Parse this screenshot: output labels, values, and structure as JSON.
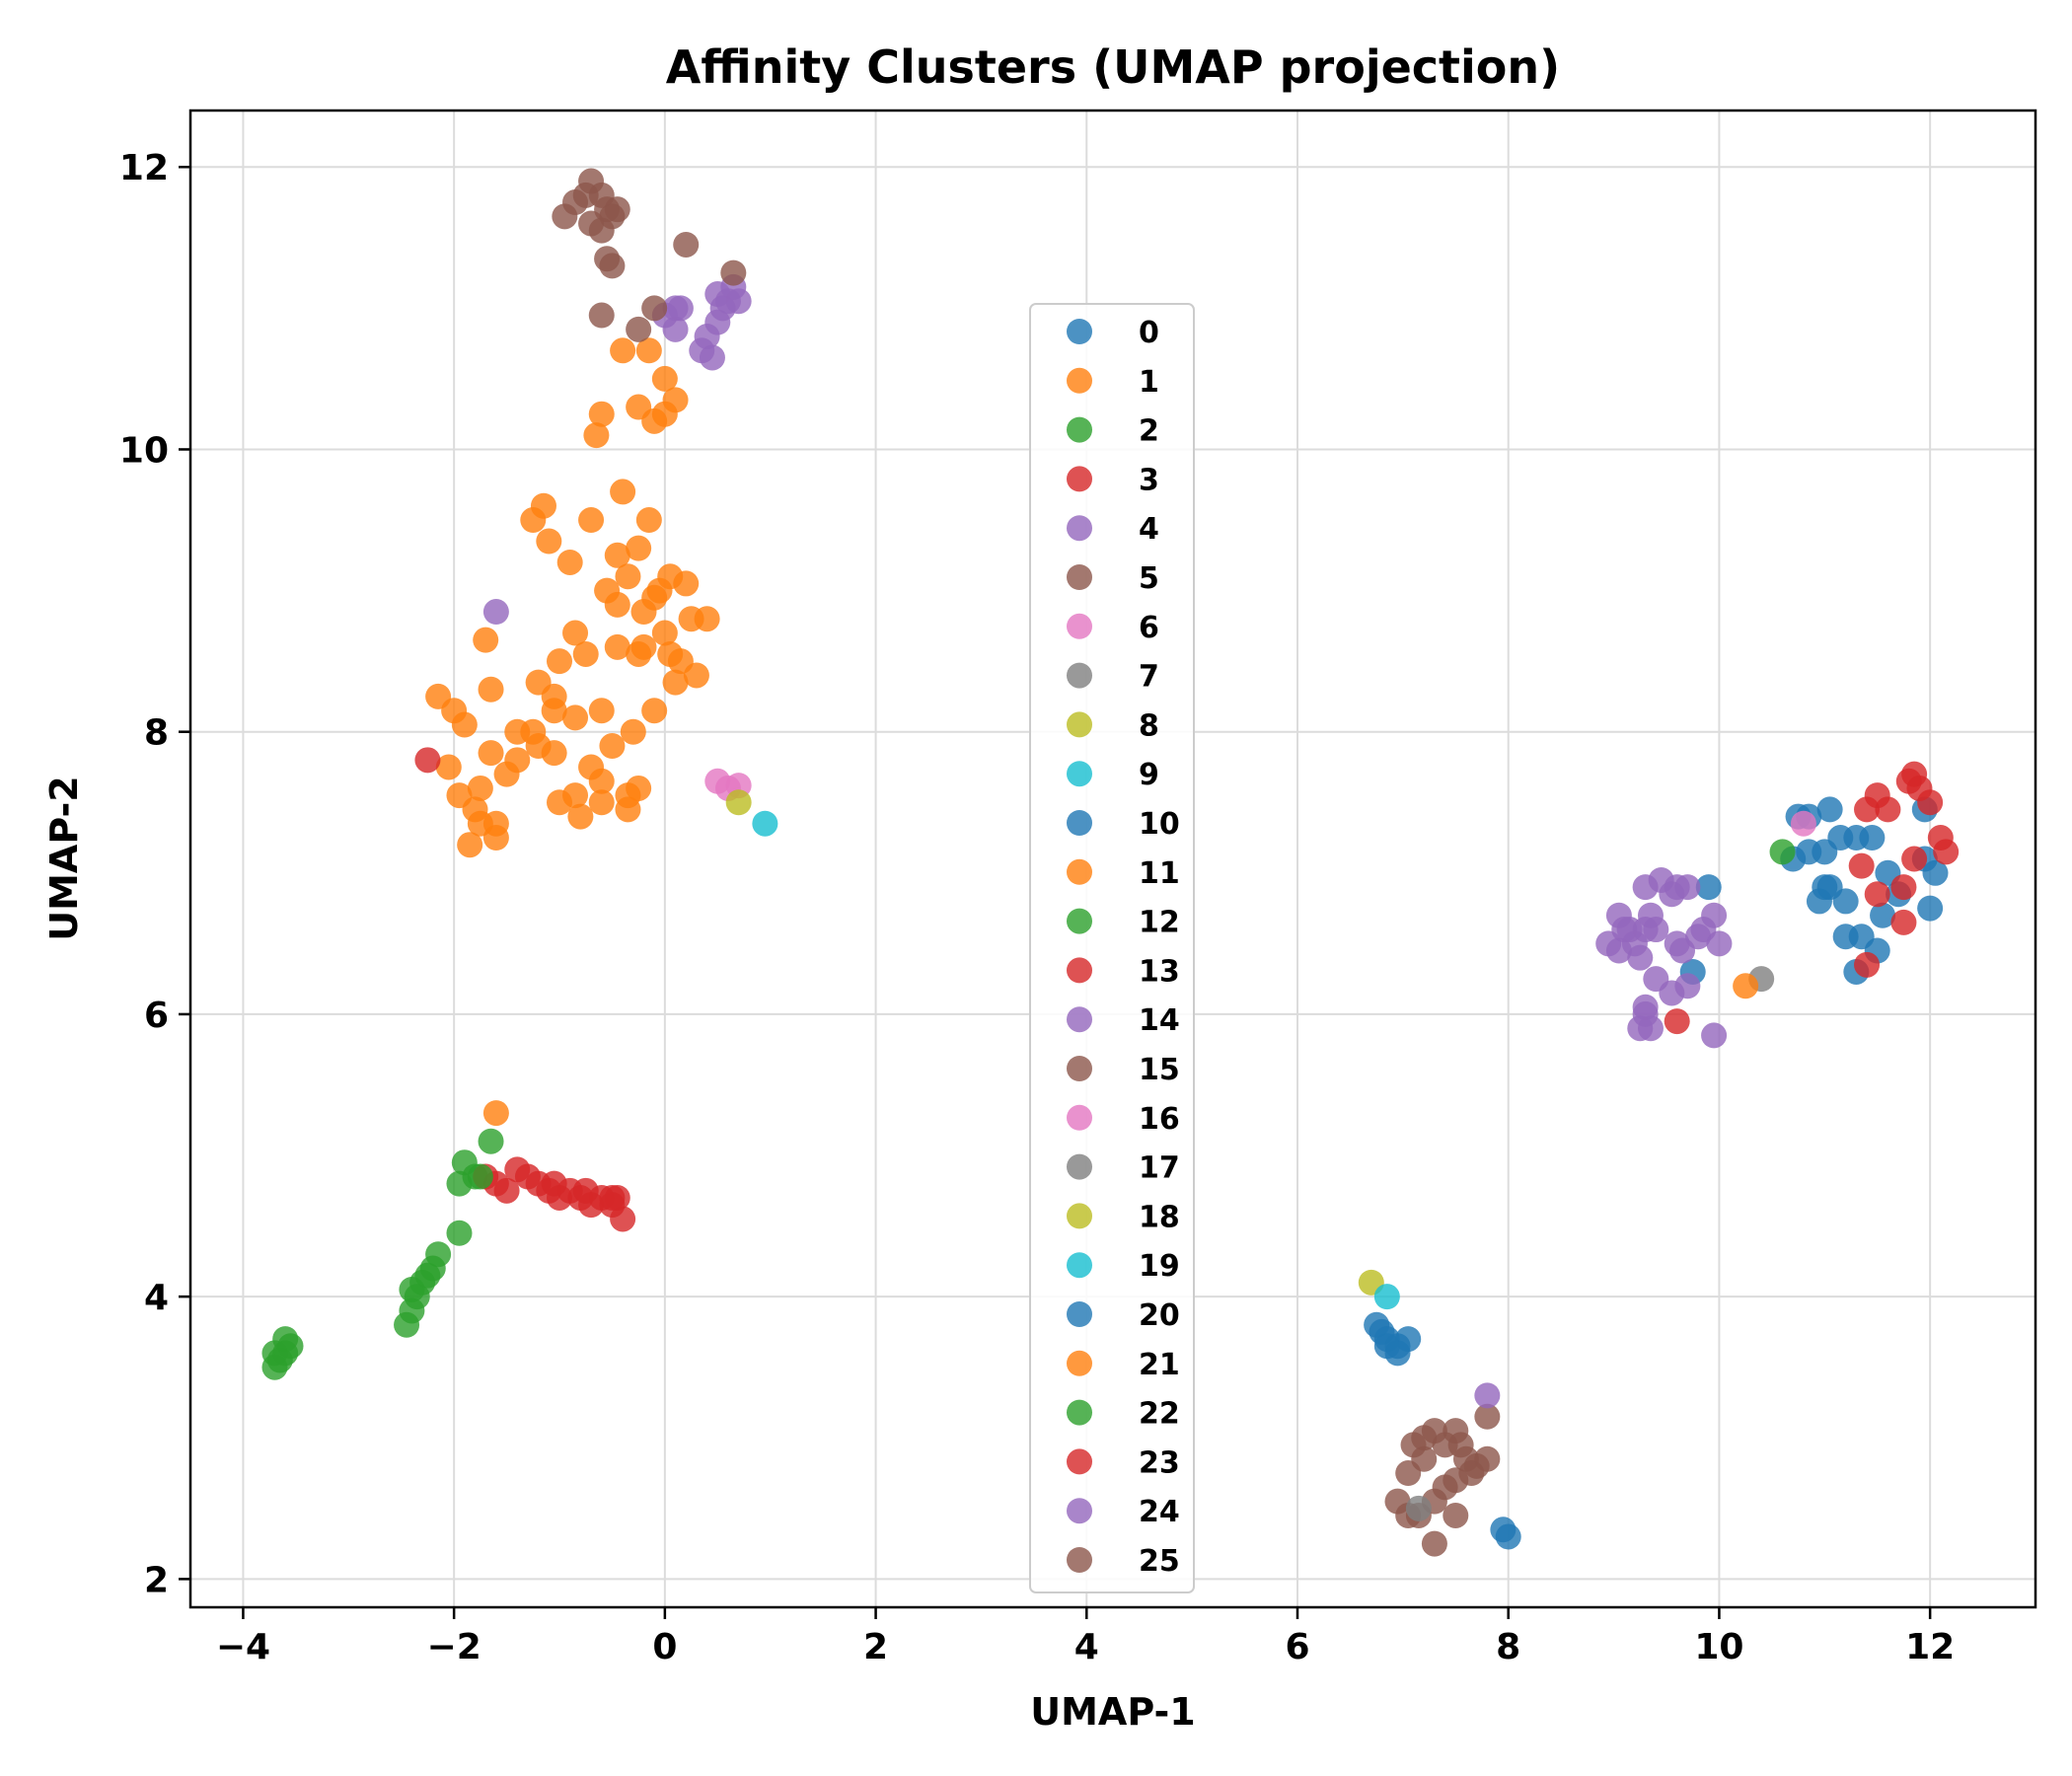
{
  "chart_data": {
    "type": "scatter",
    "title": "Affinity Clusters (UMAP projection)",
    "xlabel": "UMAP-1",
    "ylabel": "UMAP-2",
    "xlim": [
      -4.5,
      13
    ],
    "ylim": [
      1.8,
      12.4
    ],
    "xticks": [
      -4,
      -2,
      0,
      2,
      4,
      6,
      8,
      10,
      12
    ],
    "xtick_labels": [
      "−4",
      "−2",
      "0",
      "2",
      "4",
      "6",
      "8",
      "10",
      "12"
    ],
    "yticks": [
      2,
      4,
      6,
      8,
      10,
      12
    ],
    "ytick_labels": [
      "2",
      "4",
      "6",
      "8",
      "10",
      "12"
    ],
    "grid": true,
    "legend_position": "center",
    "series": [
      {
        "name": "0",
        "color": "#1f77b4",
        "points": [
          [
            9.75,
            6.3
          ],
          [
            9.9,
            6.9
          ]
        ]
      },
      {
        "name": "1",
        "color": "#ff7f0e",
        "points": [
          [
            -1.6,
            7.25
          ],
          [
            -1.8,
            7.45
          ],
          [
            -1.65,
            7.85
          ],
          [
            -1.4,
            7.8
          ],
          [
            -1.2,
            7.9
          ],
          [
            -1.05,
            8.15
          ],
          [
            -1.2,
            8.35
          ],
          [
            -1.0,
            7.5
          ],
          [
            -0.8,
            7.4
          ],
          [
            -0.6,
            7.65
          ],
          [
            -0.35,
            7.45
          ],
          [
            -0.25,
            7.6
          ],
          [
            -0.5,
            7.9
          ],
          [
            -0.3,
            8.0
          ],
          [
            -0.1,
            8.15
          ],
          [
            0.1,
            8.35
          ],
          [
            0.3,
            8.4
          ],
          [
            0.05,
            8.55
          ],
          [
            -0.2,
            8.6
          ],
          [
            0.0,
            8.7
          ],
          [
            0.25,
            8.8
          ],
          [
            0.4,
            8.8
          ],
          [
            0.2,
            9.05
          ],
          [
            -0.05,
            9.0
          ],
          [
            -0.2,
            8.85
          ],
          [
            -0.45,
            8.9
          ],
          [
            -0.55,
            9.0
          ],
          [
            -0.35,
            9.1
          ],
          [
            -0.25,
            9.3
          ],
          [
            -0.45,
            9.25
          ],
          [
            -0.15,
            9.5
          ],
          [
            -0.7,
            9.5
          ],
          [
            -0.9,
            9.2
          ],
          [
            -1.1,
            9.35
          ],
          [
            -1.25,
            9.5
          ],
          [
            -1.15,
            9.6
          ],
          [
            -0.4,
            9.7
          ],
          [
            -0.6,
            8.15
          ],
          [
            -0.85,
            8.1
          ],
          [
            -0.75,
            8.55
          ],
          [
            -1.0,
            8.5
          ],
          [
            -1.25,
            8.0
          ],
          [
            -1.5,
            7.7
          ],
          [
            -1.65,
            8.3
          ],
          [
            -1.9,
            8.05
          ],
          [
            -2.05,
            7.75
          ],
          [
            -2.15,
            8.25
          ],
          [
            -2.0,
            8.15
          ],
          [
            -1.7,
            8.65
          ],
          [
            -0.85,
            8.7
          ],
          [
            -1.05,
            8.25
          ],
          [
            -1.4,
            8.0
          ],
          [
            -1.75,
            7.6
          ],
          [
            -1.85,
            7.2
          ],
          [
            -1.6,
            7.35
          ],
          [
            -1.05,
            7.85
          ],
          [
            -0.85,
            7.55
          ],
          [
            -0.6,
            7.5
          ],
          [
            -0.45,
            8.6
          ],
          [
            -0.25,
            8.55
          ],
          [
            0.15,
            8.5
          ],
          [
            0.05,
            9.1
          ],
          [
            -0.1,
            8.95
          ],
          [
            -0.6,
            10.25
          ],
          [
            -0.65,
            10.1
          ],
          [
            -0.25,
            10.3
          ],
          [
            -0.1,
            10.2
          ],
          [
            0.1,
            10.35
          ],
          [
            0.0,
            10.5
          ],
          [
            -0.15,
            10.7
          ],
          [
            -0.4,
            10.7
          ],
          [
            0.0,
            10.25
          ],
          [
            -0.35,
            7.55
          ],
          [
            -1.95,
            7.55
          ],
          [
            -1.75,
            7.35
          ],
          [
            -0.7,
            7.75
          ]
        ]
      },
      {
        "name": "2",
        "color": "#2ca02c",
        "points": [
          [
            -3.7,
            3.5
          ],
          [
            -3.65,
            3.55
          ],
          [
            -3.6,
            3.6
          ],
          [
            -3.55,
            3.65
          ],
          [
            -3.7,
            3.6
          ],
          [
            -3.6,
            3.7
          ],
          [
            -2.45,
            3.8
          ],
          [
            -2.4,
            3.9
          ],
          [
            -2.35,
            4.0
          ],
          [
            -2.3,
            4.1
          ],
          [
            -2.25,
            4.15
          ],
          [
            -2.2,
            4.2
          ],
          [
            -2.15,
            4.3
          ],
          [
            -1.95,
            4.45
          ],
          [
            -1.95,
            4.8
          ],
          [
            -1.9,
            4.95
          ],
          [
            -1.8,
            4.85
          ],
          [
            -1.65,
            5.1
          ],
          [
            -2.4,
            4.05
          ]
        ]
      },
      {
        "name": "3",
        "color": "#d62728",
        "points": [
          [
            -2.25,
            7.8
          ],
          [
            -1.7,
            4.85
          ],
          [
            -1.6,
            4.8
          ],
          [
            -1.5,
            4.75
          ],
          [
            -1.4,
            4.9
          ],
          [
            -1.3,
            4.85
          ],
          [
            -1.2,
            4.8
          ],
          [
            -1.1,
            4.75
          ],
          [
            -1.0,
            4.7
          ],
          [
            -0.9,
            4.75
          ],
          [
            -0.8,
            4.7
          ],
          [
            -0.7,
            4.65
          ],
          [
            -0.6,
            4.7
          ],
          [
            -0.5,
            4.65
          ],
          [
            -0.45,
            4.7
          ],
          [
            -0.4,
            4.55
          ],
          [
            -0.75,
            4.75
          ],
          [
            -1.05,
            4.8
          ]
        ]
      },
      {
        "name": "4",
        "color": "#9467bd",
        "points": [
          [
            -1.6,
            8.85
          ],
          [
            0.1,
            11.0
          ],
          [
            0.1,
            10.85
          ],
          [
            0.35,
            10.7
          ],
          [
            0.45,
            10.65
          ],
          [
            0.5,
            10.9
          ],
          [
            0.55,
            11.0
          ],
          [
            0.6,
            11.05
          ],
          [
            0.7,
            11.05
          ],
          [
            0.65,
            11.15
          ],
          [
            0.5,
            11.1
          ],
          [
            0.15,
            11.0
          ],
          [
            0.0,
            10.95
          ],
          [
            0.4,
            10.8
          ]
        ]
      },
      {
        "name": "5",
        "color": "#8c564b",
        "points": [
          [
            -0.95,
            11.65
          ],
          [
            -0.85,
            11.75
          ],
          [
            -0.75,
            11.8
          ],
          [
            -0.7,
            11.9
          ],
          [
            -0.6,
            11.8
          ],
          [
            -0.55,
            11.7
          ],
          [
            -0.5,
            11.65
          ],
          [
            -0.6,
            11.55
          ],
          [
            -0.55,
            11.35
          ],
          [
            -0.5,
            11.3
          ],
          [
            -0.45,
            11.7
          ],
          [
            -0.6,
            10.95
          ],
          [
            -0.25,
            10.85
          ],
          [
            -0.1,
            11.0
          ],
          [
            0.2,
            11.45
          ],
          [
            0.65,
            11.25
          ],
          [
            -0.7,
            11.6
          ]
        ]
      },
      {
        "name": "6",
        "color": "#e377c2",
        "points": [
          [
            0.5,
            7.65
          ],
          [
            0.6,
            7.6
          ],
          [
            0.7,
            7.62
          ]
        ]
      },
      {
        "name": "7",
        "color": "#7f7f7f",
        "points": [
          [
            10.4,
            6.25
          ]
        ]
      },
      {
        "name": "8",
        "color": "#bcbd22",
        "points": [
          [
            0.7,
            7.5
          ]
        ]
      },
      {
        "name": "9",
        "color": "#17becf",
        "points": [
          [
            0.95,
            7.35
          ]
        ]
      },
      {
        "name": "10",
        "color": "#1f77b4",
        "points": [
          [
            10.75,
            7.4
          ],
          [
            10.85,
            7.4
          ],
          [
            11.05,
            7.45
          ],
          [
            11.15,
            7.25
          ],
          [
            11.3,
            7.25
          ],
          [
            11.45,
            7.25
          ],
          [
            11.6,
            7.0
          ],
          [
            11.7,
            6.85
          ],
          [
            11.95,
            7.1
          ],
          [
            12.05,
            7.0
          ],
          [
            12.0,
            6.75
          ],
          [
            11.55,
            6.7
          ],
          [
            11.5,
            6.45
          ],
          [
            11.3,
            6.3
          ],
          [
            11.2,
            6.55
          ],
          [
            11.05,
            6.9
          ],
          [
            10.95,
            6.8
          ],
          [
            10.7,
            7.1
          ],
          [
            10.85,
            7.15
          ],
          [
            11.0,
            7.15
          ],
          [
            11.2,
            6.8
          ],
          [
            11.35,
            6.55
          ],
          [
            11.0,
            6.9
          ],
          [
            11.95,
            7.45
          ]
        ]
      },
      {
        "name": "11",
        "color": "#ff7f0e",
        "points": [
          [
            10.25,
            6.2
          ]
        ]
      },
      {
        "name": "12",
        "color": "#2ca02c",
        "points": [
          [
            10.6,
            7.15
          ]
        ]
      },
      {
        "name": "13",
        "color": "#d62728",
        "points": [
          [
            9.6,
            5.95
          ],
          [
            11.4,
            6.35
          ],
          [
            11.5,
            6.85
          ],
          [
            11.75,
            6.65
          ],
          [
            11.75,
            6.9
          ],
          [
            11.85,
            7.1
          ],
          [
            11.35,
            7.05
          ],
          [
            11.4,
            7.45
          ],
          [
            11.5,
            7.55
          ],
          [
            11.6,
            7.45
          ],
          [
            11.8,
            7.65
          ],
          [
            11.9,
            7.6
          ],
          [
            12.0,
            7.5
          ],
          [
            12.1,
            7.25
          ],
          [
            12.15,
            7.15
          ],
          [
            11.85,
            7.7
          ]
        ]
      },
      {
        "name": "14",
        "color": "#9467bd",
        "points": [
          [
            8.95,
            6.5
          ],
          [
            9.05,
            6.7
          ],
          [
            9.1,
            6.6
          ],
          [
            9.05,
            6.45
          ],
          [
            9.2,
            6.5
          ],
          [
            9.3,
            6.6
          ],
          [
            9.25,
            6.4
          ],
          [
            9.35,
            6.7
          ],
          [
            9.3,
            6.9
          ],
          [
            9.45,
            6.95
          ],
          [
            9.55,
            6.85
          ],
          [
            9.6,
            6.9
          ],
          [
            9.7,
            6.9
          ],
          [
            9.6,
            6.5
          ],
          [
            9.65,
            6.45
          ],
          [
            9.8,
            6.55
          ],
          [
            9.85,
            6.6
          ],
          [
            9.95,
            6.7
          ],
          [
            10.0,
            6.5
          ],
          [
            9.4,
            6.25
          ],
          [
            9.55,
            6.15
          ],
          [
            9.7,
            6.2
          ],
          [
            9.3,
            6.0
          ],
          [
            9.35,
            5.9
          ],
          [
            9.25,
            5.9
          ],
          [
            9.95,
            5.85
          ],
          [
            9.4,
            6.6
          ],
          [
            9.15,
            6.6
          ],
          [
            9.3,
            6.05
          ]
        ]
      },
      {
        "name": "15",
        "color": "#8c564b",
        "points": [
          [
            7.1,
            2.95
          ],
          [
            7.2,
            3.0
          ],
          [
            7.3,
            3.05
          ],
          [
            7.4,
            2.95
          ],
          [
            7.5,
            3.05
          ],
          [
            7.55,
            2.95
          ],
          [
            7.6,
            2.85
          ],
          [
            7.7,
            2.8
          ],
          [
            7.65,
            2.75
          ],
          [
            7.5,
            2.7
          ],
          [
            7.4,
            2.65
          ],
          [
            7.3,
            2.55
          ],
          [
            7.15,
            2.45
          ],
          [
            7.05,
            2.45
          ],
          [
            6.95,
            2.55
          ],
          [
            7.5,
            2.45
          ],
          [
            7.3,
            2.25
          ],
          [
            7.05,
            2.75
          ],
          [
            7.8,
            3.15
          ],
          [
            7.2,
            2.85
          ]
        ]
      },
      {
        "name": "16",
        "color": "#e377c2",
        "points": [
          [
            10.8,
            7.35
          ]
        ]
      },
      {
        "name": "17",
        "color": "#7f7f7f",
        "points": [
          [
            7.15,
            2.5
          ]
        ]
      },
      {
        "name": "18",
        "color": "#bcbd22",
        "points": [
          [
            6.7,
            4.1
          ]
        ]
      },
      {
        "name": "19",
        "color": "#17becf",
        "points": [
          [
            6.85,
            4.0
          ]
        ]
      },
      {
        "name": "20",
        "color": "#1f77b4",
        "points": [
          [
            6.75,
            3.8
          ],
          [
            6.8,
            3.75
          ],
          [
            6.85,
            3.7
          ],
          [
            6.95,
            3.65
          ],
          [
            7.05,
            3.7
          ],
          [
            6.95,
            3.6
          ],
          [
            6.85,
            3.65
          ],
          [
            7.95,
            2.35
          ],
          [
            8.0,
            2.3
          ]
        ]
      },
      {
        "name": "21",
        "color": "#ff7f0e",
        "points": [
          [
            -1.6,
            5.3
          ]
        ]
      },
      {
        "name": "22",
        "color": "#2ca02c",
        "points": [
          [
            -1.75,
            4.85
          ]
        ]
      },
      {
        "name": "23",
        "color": "#d62728",
        "points": [
          [
            -0.5,
            4.7
          ]
        ]
      },
      {
        "name": "24",
        "color": "#9467bd",
        "points": [
          [
            7.8,
            3.3
          ]
        ]
      },
      {
        "name": "25",
        "color": "#8c564b",
        "points": [
          [
            7.8,
            2.85
          ]
        ]
      }
    ]
  }
}
